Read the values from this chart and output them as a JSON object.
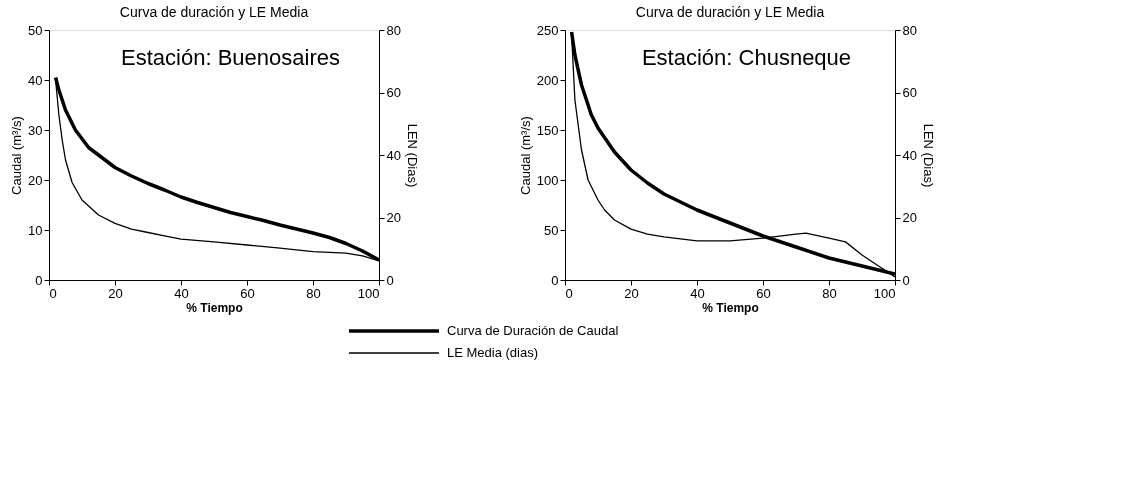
{
  "chart_data": [
    {
      "type": "line",
      "title": "Curva de duración y LE Media",
      "annotations": [
        "Estación:  Buenosaires"
      ],
      "xlabel": "% Tiempo",
      "ylabel": "Caudal (m³/s)",
      "y2label": "LEN (Dias)",
      "xlim": [
        0,
        100
      ],
      "xticks": [
        0,
        20,
        40,
        60,
        80,
        100
      ],
      "ylim": [
        0,
        50
      ],
      "yticks": [
        0,
        10,
        20,
        30,
        40,
        50
      ],
      "y2lim": [
        0,
        80
      ],
      "y2ticks": [
        0,
        20,
        40,
        60,
        80
      ],
      "grid": false,
      "legend": "bottom",
      "marker": "none",
      "line_style": "solid",
      "series": [
        {
          "name": "Curva de Duración de Caudal",
          "color": "#000000",
          "axis": "y",
          "x": [
            2,
            3,
            5,
            8,
            12,
            16,
            20,
            25,
            30,
            35,
            40,
            45,
            50,
            55,
            60,
            65,
            70,
            75,
            80,
            85,
            90,
            95,
            100
          ],
          "values": [
            40.5,
            38,
            34,
            30,
            26.5,
            24.5,
            22.5,
            20.8,
            19.3,
            18,
            16.6,
            15.5,
            14.5,
            13.5,
            12.7,
            11.9,
            11,
            10.2,
            9.4,
            8.5,
            7.3,
            5.8,
            4
          ]
        },
        {
          "name": "LE Media (dias)",
          "color": "#000000",
          "axis": "y2",
          "x": [
            2,
            3,
            4,
            5,
            7,
            10,
            15,
            20,
            25,
            30,
            35,
            40,
            50,
            60,
            70,
            80,
            90,
            95,
            100
          ],
          "values": [
            64,
            52.8,
            44.8,
            38.4,
            31.2,
            25.6,
            20.8,
            18.1,
            16.3,
            15.2,
            14.1,
            13.1,
            12.2,
            11.2,
            10.2,
            9.1,
            8.6,
            7.7,
            6.1
          ]
        }
      ]
    },
    {
      "type": "line",
      "title": "Curva de duración y LE Media",
      "annotations": [
        "Estación:  Chusneque"
      ],
      "xlabel": "% Tiempo",
      "ylabel": "Caudal (m³/s)",
      "y2label": "LEN (Dias)",
      "xlim": [
        0,
        100
      ],
      "xticks": [
        0,
        20,
        40,
        60,
        80,
        100
      ],
      "ylim": [
        0,
        250
      ],
      "yticks": [
        0,
        50,
        100,
        150,
        200,
        250
      ],
      "y2lim": [
        0,
        80
      ],
      "y2ticks": [
        0,
        20,
        40,
        60,
        80
      ],
      "grid": false,
      "marker": "none",
      "line_style": "solid",
      "series": [
        {
          "color": "#000000",
          "axis": "y",
          "x": [
            2,
            3,
            5,
            8,
            10,
            15,
            20,
            25,
            30,
            40,
            50,
            60,
            70,
            80,
            90,
            100
          ],
          "values": [
            248,
            225,
            195,
            165,
            152,
            128,
            110,
            97,
            86,
            70,
            57,
            44,
            33,
            22,
            14,
            6
          ]
        },
        {
          "color": "#000000",
          "axis": "y2",
          "x": [
            2,
            3,
            5,
            7,
            10,
            12,
            15,
            20,
            25,
            30,
            40,
            50,
            60,
            70,
            73,
            80,
            85,
            90,
            95,
            100
          ],
          "values": [
            78.4,
            57.6,
            41.6,
            32,
            25.6,
            22.4,
            19.2,
            16.3,
            14.7,
            13.8,
            12.5,
            12.5,
            13.4,
            14.7,
            15,
            13.4,
            12.2,
            8,
            4.5,
            1
          ]
        }
      ]
    }
  ]
}
